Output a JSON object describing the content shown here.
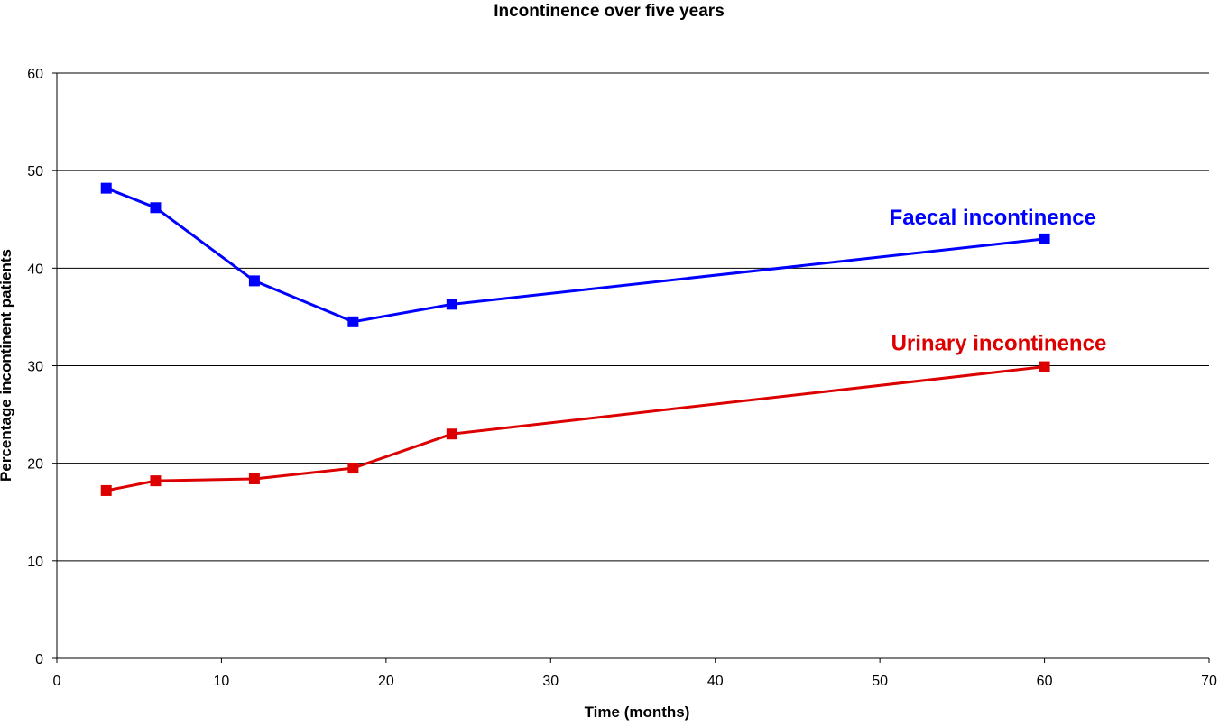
{
  "chart_data": {
    "type": "line",
    "title": "Incontinence over five years",
    "xlabel": "Time (months)",
    "ylabel": "Percentage incontinent patients",
    "xlim": [
      0,
      70
    ],
    "ylim": [
      0,
      60
    ],
    "x_ticks": [
      0,
      10,
      20,
      30,
      40,
      50,
      60,
      70
    ],
    "y_ticks": [
      0,
      10,
      20,
      30,
      40,
      50,
      60
    ],
    "grid": "horizontal",
    "legend": "inline labels",
    "series": [
      {
        "name": "Faecal incontinence",
        "color": "#0000ff",
        "marker": "square",
        "x": [
          3,
          6,
          12,
          18,
          24,
          60
        ],
        "values": [
          48.2,
          46.2,
          38.7,
          34.5,
          36.3,
          43.0
        ]
      },
      {
        "name": "Urinary incontinence",
        "color": "#dd0000",
        "marker": "square",
        "x": [
          3,
          6,
          12,
          18,
          24,
          60
        ],
        "values": [
          17.2,
          18.2,
          18.4,
          19.5,
          23.0,
          29.9
        ]
      }
    ]
  }
}
